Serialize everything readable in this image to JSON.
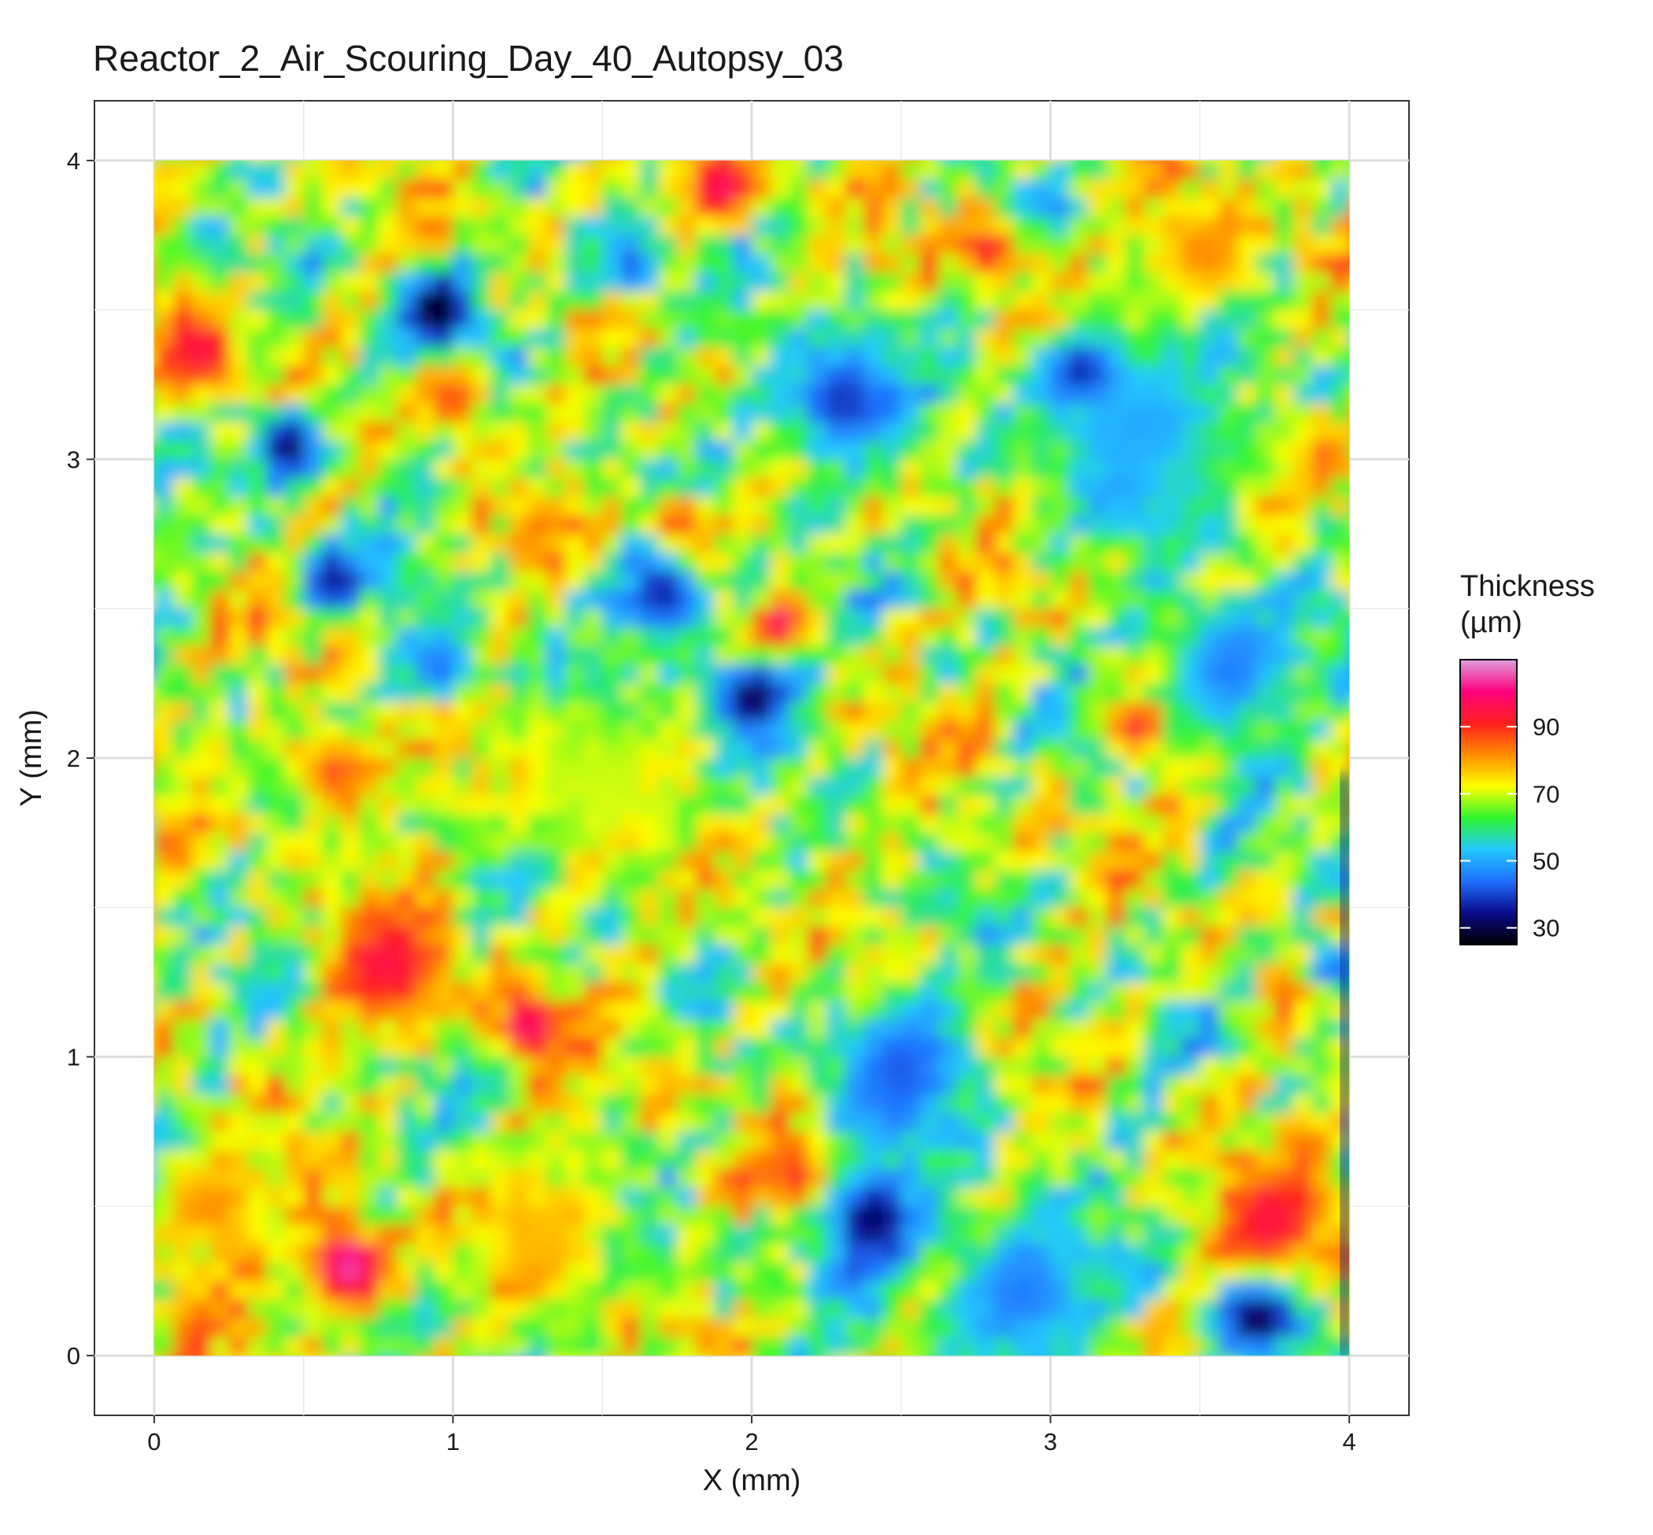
{
  "chart_data": {
    "type": "heatmap",
    "title": "Reactor_2_Air_Scouring_Day_40_Autopsy_03",
    "xlabel": "X (mm)",
    "ylabel": "Y (mm)",
    "xlim": [
      -0.2,
      4.2
    ],
    "ylim": [
      -0.2,
      4.2
    ],
    "x_ticks": [
      0,
      1,
      2,
      3,
      4
    ],
    "y_ticks": [
      0,
      1,
      2,
      3,
      4
    ],
    "grid": true,
    "legend": {
      "title_line1": "Thickness",
      "title_line2": "(µm)",
      "ticks": [
        30,
        50,
        70,
        90
      ],
      "range": [
        25,
        110
      ],
      "placement": "right",
      "colors": [
        "#000000",
        "#0a0a8c",
        "#1f6fff",
        "#22c8ff",
        "#2ff52f",
        "#ffff00",
        "#ff8c00",
        "#ff1e1e",
        "#ff007f",
        "#dda0dd"
      ]
    },
    "field": {
      "extent_x": [
        0,
        4
      ],
      "extent_y": [
        0,
        4
      ],
      "base_thickness": 68,
      "blobs": [
        {
          "x": 0.95,
          "y": 3.5,
          "value": 25,
          "spread": 0.14
        },
        {
          "x": 0.45,
          "y": 3.05,
          "value": 30,
          "spread": 0.12
        },
        {
          "x": 0.6,
          "y": 2.6,
          "value": 35,
          "spread": 0.12
        },
        {
          "x": 0.95,
          "y": 2.3,
          "value": 42,
          "spread": 0.12
        },
        {
          "x": 1.6,
          "y": 3.65,
          "value": 42,
          "spread": 0.12
        },
        {
          "x": 2.3,
          "y": 3.2,
          "value": 38,
          "spread": 0.22
        },
        {
          "x": 2.0,
          "y": 2.2,
          "value": 28,
          "spread": 0.15
        },
        {
          "x": 1.7,
          "y": 2.55,
          "value": 35,
          "spread": 0.15
        },
        {
          "x": 2.4,
          "y": 0.45,
          "value": 30,
          "spread": 0.18
        },
        {
          "x": 3.7,
          "y": 0.15,
          "value": 25,
          "spread": 0.15
        },
        {
          "x": 2.9,
          "y": 0.2,
          "value": 45,
          "spread": 0.28
        },
        {
          "x": 2.5,
          "y": 0.95,
          "value": 42,
          "spread": 0.25
        },
        {
          "x": 3.3,
          "y": 3.1,
          "value": 50,
          "spread": 0.35
        },
        {
          "x": 3.6,
          "y": 2.3,
          "value": 45,
          "spread": 0.25
        },
        {
          "x": 3.95,
          "y": 1.3,
          "value": 40,
          "spread": 0.1
        },
        {
          "x": 3.1,
          "y": 3.3,
          "value": 35,
          "spread": 0.12
        },
        {
          "x": 0.65,
          "y": 0.3,
          "value": 105,
          "spread": 0.15
        },
        {
          "x": 0.8,
          "y": 1.3,
          "value": 95,
          "spread": 0.2
        },
        {
          "x": 1.25,
          "y": 1.1,
          "value": 100,
          "spread": 0.12
        },
        {
          "x": 0.15,
          "y": 3.35,
          "value": 95,
          "spread": 0.15
        },
        {
          "x": 2.1,
          "y": 2.45,
          "value": 100,
          "spread": 0.08
        },
        {
          "x": 3.3,
          "y": 2.1,
          "value": 95,
          "spread": 0.08
        },
        {
          "x": 2.8,
          "y": 3.7,
          "value": 95,
          "spread": 0.1
        },
        {
          "x": 1.9,
          "y": 3.9,
          "value": 98,
          "spread": 0.12
        },
        {
          "x": 1.75,
          "y": 2.8,
          "value": 90,
          "spread": 0.1
        },
        {
          "x": 3.75,
          "y": 0.45,
          "value": 95,
          "spread": 0.2
        },
        {
          "x": 2.15,
          "y": 0.6,
          "value": 92,
          "spread": 0.1
        },
        {
          "x": 0.6,
          "y": 1.95,
          "value": 88,
          "spread": 0.15
        },
        {
          "x": 1.0,
          "y": 3.2,
          "value": 88,
          "spread": 0.12
        },
        {
          "x": 0.2,
          "y": 0.5,
          "value": 82,
          "spread": 0.2
        },
        {
          "x": 1.3,
          "y": 0.4,
          "value": 78,
          "spread": 0.25
        },
        {
          "x": 3.5,
          "y": 3.7,
          "value": 82,
          "spread": 0.2
        },
        {
          "x": 1.5,
          "y": 1.9,
          "value": 70,
          "spread": 0.3
        }
      ]
    }
  }
}
